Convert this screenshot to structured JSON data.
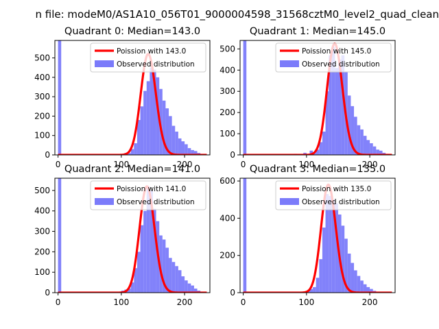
{
  "figure": {
    "suptitle": "n file: modeM0/AS1A10_056T01_9000004598_31568cztM0_level2_quad_clean"
  },
  "colors": {
    "hist": "#7b7bfa",
    "poisson": "#ff0000",
    "axis": "#000000",
    "background": "#ffffff"
  },
  "chart_data": [
    {
      "type": "bar",
      "title": "Quadrant 0: Median=143.0",
      "median": 143.0,
      "xlim": [
        -5,
        240
      ],
      "ylim": [
        0,
        590
      ],
      "xticks": [
        0,
        100,
        200
      ],
      "yticks": [
        0,
        100,
        200,
        300,
        400,
        500
      ],
      "legend": {
        "placement": "top-right",
        "entries": [
          "Poission with 143.0",
          "Observed distribution"
        ]
      },
      "series": [
        {
          "name": "Observed distribution",
          "kind": "histogram",
          "bin_width": 5,
          "bins": [
            [
              0,
              590
            ],
            [
              80,
              5
            ],
            [
              95,
              5
            ],
            [
              105,
              10
            ],
            [
              110,
              10
            ],
            [
              115,
              30
            ],
            [
              120,
              60
            ],
            [
              125,
              180
            ],
            [
              130,
              250
            ],
            [
              135,
              330
            ],
            [
              140,
              380
            ],
            [
              145,
              450
            ],
            [
              150,
              440
            ],
            [
              155,
              400
            ],
            [
              160,
              340
            ],
            [
              165,
              280
            ],
            [
              170,
              240
            ],
            [
              175,
              200
            ],
            [
              180,
              150
            ],
            [
              185,
              120
            ],
            [
              190,
              85
            ],
            [
              195,
              70
            ],
            [
              200,
              55
            ],
            [
              205,
              35
            ],
            [
              210,
              25
            ],
            [
              215,
              20
            ],
            [
              220,
              10
            ],
            [
              225,
              5
            ],
            [
              230,
              3
            ]
          ]
        },
        {
          "name": "Poission with 143.0",
          "kind": "poisson_curve",
          "lambda": 143.0,
          "peak": 520,
          "x_range": [
            0,
            235
          ]
        }
      ]
    },
    {
      "type": "bar",
      "title": "Quadrant 1: Median=145.0",
      "median": 145.0,
      "xlim": [
        -5,
        240
      ],
      "ylim": [
        0,
        540
      ],
      "xticks": [
        0,
        100,
        200
      ],
      "yticks": [
        0,
        100,
        200,
        300,
        400,
        500
      ],
      "legend": {
        "placement": "top-right",
        "entries": [
          "Poission with 145.0",
          "Observed distribution"
        ]
      },
      "series": [
        {
          "name": "Observed distribution",
          "kind": "histogram",
          "bin_width": 5,
          "bins": [
            [
              0,
              540
            ],
            [
              80,
              5
            ],
            [
              95,
              10
            ],
            [
              105,
              20
            ],
            [
              110,
              10
            ],
            [
              115,
              25
            ],
            [
              120,
              60
            ],
            [
              125,
              110
            ],
            [
              130,
              300
            ],
            [
              135,
              470
            ],
            [
              140,
              510
            ],
            [
              145,
              410
            ],
            [
              150,
              450
            ],
            [
              155,
              470
            ],
            [
              160,
              390
            ],
            [
              165,
              280
            ],
            [
              170,
              230
            ],
            [
              175,
              180
            ],
            [
              180,
              140
            ],
            [
              185,
              120
            ],
            [
              190,
              90
            ],
            [
              195,
              70
            ],
            [
              200,
              55
            ],
            [
              205,
              40
            ],
            [
              210,
              25
            ],
            [
              215,
              20
            ],
            [
              220,
              10
            ],
            [
              225,
              5
            ]
          ]
        },
        {
          "name": "Poission with 145.0",
          "kind": "poisson_curve",
          "lambda": 145.0,
          "peak": 525,
          "x_range": [
            0,
            235
          ]
        }
      ]
    },
    {
      "type": "bar",
      "title": "Quadrant 2: Median=141.0",
      "median": 141.0,
      "xlim": [
        -5,
        240
      ],
      "ylim": [
        0,
        560
      ],
      "xticks": [
        0,
        100,
        200
      ],
      "yticks": [
        0,
        100,
        200,
        300,
        400,
        500
      ],
      "legend": {
        "placement": "top-right",
        "entries": [
          "Poission with 141.0",
          "Observed distribution"
        ]
      },
      "series": [
        {
          "name": "Observed distribution",
          "kind": "histogram",
          "bin_width": 5,
          "bins": [
            [
              0,
              560
            ],
            [
              75,
              5
            ],
            [
              90,
              5
            ],
            [
              100,
              10
            ],
            [
              105,
              15
            ],
            [
              110,
              20
            ],
            [
              115,
              50
            ],
            [
              120,
              120
            ],
            [
              125,
              200
            ],
            [
              130,
              330
            ],
            [
              135,
              400
            ],
            [
              140,
              520
            ],
            [
              145,
              500
            ],
            [
              150,
              410
            ],
            [
              155,
              350
            ],
            [
              160,
              280
            ],
            [
              165,
              260
            ],
            [
              170,
              220
            ],
            [
              175,
              170
            ],
            [
              180,
              150
            ],
            [
              185,
              130
            ],
            [
              190,
              110
            ],
            [
              195,
              80
            ],
            [
              200,
              60
            ],
            [
              205,
              45
            ],
            [
              210,
              35
            ],
            [
              215,
              20
            ],
            [
              220,
              10
            ],
            [
              225,
              5
            ]
          ]
        },
        {
          "name": "Poission with 141.0",
          "kind": "poisson_curve",
          "lambda": 141.0,
          "peak": 520,
          "x_range": [
            0,
            235
          ]
        }
      ]
    },
    {
      "type": "bar",
      "title": "Quadrant 3: Median=135.0",
      "median": 135.0,
      "xlim": [
        -5,
        240
      ],
      "ylim": [
        0,
        615
      ],
      "xticks": [
        0,
        100,
        200
      ],
      "yticks": [
        0,
        200,
        400,
        600
      ],
      "legend": {
        "placement": "top-right",
        "entries": [
          "Poission with 135.0",
          "Observed distribution"
        ]
      },
      "series": [
        {
          "name": "Observed distribution",
          "kind": "histogram",
          "bin_width": 5,
          "bins": [
            [
              0,
              615
            ],
            [
              75,
              5
            ],
            [
              90,
              5
            ],
            [
              100,
              10
            ],
            [
              105,
              20
            ],
            [
              110,
              30
            ],
            [
              115,
              80
            ],
            [
              120,
              180
            ],
            [
              125,
              350
            ],
            [
              130,
              530
            ],
            [
              135,
              520
            ],
            [
              140,
              500
            ],
            [
              145,
              480
            ],
            [
              150,
              420
            ],
            [
              155,
              360
            ],
            [
              160,
              290
            ],
            [
              165,
              210
            ],
            [
              170,
              160
            ],
            [
              175,
              120
            ],
            [
              180,
              90
            ],
            [
              185,
              65
            ],
            [
              190,
              45
            ],
            [
              195,
              30
            ],
            [
              200,
              20
            ],
            [
              205,
              10
            ],
            [
              210,
              5
            ]
          ]
        },
        {
          "name": "Poission with 135.0",
          "kind": "poisson_curve",
          "lambda": 135.0,
          "peak": 580,
          "x_range": [
            0,
            235
          ]
        }
      ]
    }
  ]
}
